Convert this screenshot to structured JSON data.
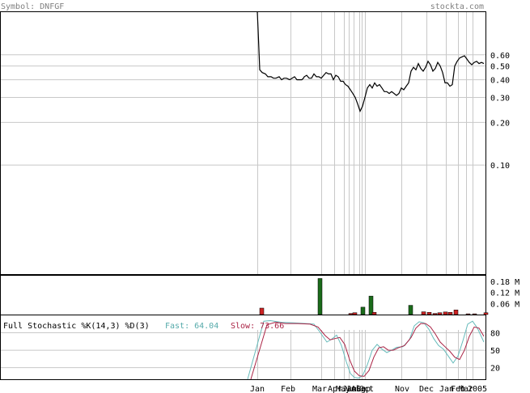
{
  "header": {
    "symbol_label": "Symbol: DNFGF",
    "site": "stockta.com"
  },
  "colors": {
    "header_text": "#808080",
    "grid": "#c8c8c8",
    "price_line": "#000000",
    "vol_up": "#1a6b1a",
    "vol_down": "#cc2222",
    "fast_line": "#66bbbb",
    "slow_line": "#aa2244",
    "stoch_title": "#000000",
    "fast_text": "#55aaaa",
    "slow_text": "#aa2244"
  },
  "chart_data": [
    {
      "type": "line",
      "name": "price",
      "yscale": "log",
      "ylim": [
        0.017,
        1.2
      ],
      "yticks": [
        "0.60",
        "0.50",
        "0.40",
        "0.30",
        "0.20",
        "0.10"
      ],
      "ytick_values": [
        0.6,
        0.5,
        0.4,
        0.3,
        0.2,
        0.1
      ],
      "xticks": [
        "Jan",
        "Feb",
        "Mar",
        "Apr",
        "May",
        "Jun",
        "Jul",
        "Aug",
        "Sep",
        "Oct",
        "Nov",
        "Dec",
        "Jan",
        "Feb",
        "Mar",
        "2005"
      ],
      "x": [
        0,
        1,
        3,
        6,
        10,
        13,
        17,
        20,
        23,
        27,
        30,
        33,
        36,
        40,
        43,
        46,
        49,
        52,
        55,
        57,
        58,
        61,
        64,
        67,
        70,
        73,
        76,
        79,
        82,
        85,
        88,
        91,
        94,
        97,
        100,
        103,
        106,
        109,
        112,
        115,
        118,
        121,
        124,
        127,
        130,
        133,
        136,
        139,
        142,
        145,
        148,
        151,
        154,
        157,
        160,
        163,
        166,
        169,
        172,
        175,
        178,
        181,
        184,
        187,
        190,
        193,
        196,
        199,
        202,
        205,
        208,
        211,
        214,
        217,
        220,
        223,
        226,
        229,
        232,
        235,
        238,
        241,
        244,
        247,
        250,
        253,
        256,
        259,
        262,
        265,
        268,
        271,
        274,
        277,
        280
      ],
      "values": [
        1.2,
        0.9,
        0.47,
        0.45,
        0.44,
        0.42,
        0.42,
        0.41,
        0.41,
        0.42,
        0.4,
        0.41,
        0.41,
        0.4,
        0.41,
        0.42,
        0.4,
        0.4,
        0.4,
        0.41,
        0.42,
        0.43,
        0.41,
        0.41,
        0.44,
        0.42,
        0.42,
        0.41,
        0.43,
        0.45,
        0.44,
        0.44,
        0.4,
        0.43,
        0.42,
        0.39,
        0.39,
        0.37,
        0.36,
        0.34,
        0.32,
        0.3,
        0.27,
        0.24,
        0.26,
        0.3,
        0.35,
        0.37,
        0.35,
        0.38,
        0.36,
        0.37,
        0.35,
        0.33,
        0.33,
        0.32,
        0.33,
        0.32,
        0.31,
        0.32,
        0.35,
        0.34,
        0.36,
        0.38,
        0.46,
        0.49,
        0.47,
        0.52,
        0.48,
        0.46,
        0.49,
        0.54,
        0.51,
        0.46,
        0.48,
        0.53,
        0.5,
        0.45,
        0.38,
        0.38,
        0.36,
        0.37,
        0.5,
        0.54,
        0.57,
        0.58,
        0.59,
        0.56,
        0.53,
        0.51,
        0.53,
        0.54,
        0.52,
        0.53,
        0.52
      ]
    },
    {
      "type": "bar",
      "name": "volume",
      "yticks": [
        "0.18 M",
        "0.12 M",
        "0.06 M"
      ],
      "ytick_values": [
        0.18,
        0.12,
        0.06
      ],
      "ylim": [
        0,
        0.21
      ],
      "bars": [
        {
          "x": 3,
          "v": 0.035,
          "up": false
        },
        {
          "x": 75,
          "v": 0.195,
          "up": true
        },
        {
          "x": 113,
          "v": 0.006,
          "up": false
        },
        {
          "x": 118,
          "v": 0.01,
          "up": false
        },
        {
          "x": 128,
          "v": 0.04,
          "up": true
        },
        {
          "x": 138,
          "v": 0.1,
          "up": true
        },
        {
          "x": 142,
          "v": 0.012,
          "up": false
        },
        {
          "x": 187,
          "v": 0.05,
          "up": true
        },
        {
          "x": 203,
          "v": 0.015,
          "up": false
        },
        {
          "x": 210,
          "v": 0.012,
          "up": false
        },
        {
          "x": 217,
          "v": 0.006,
          "up": false
        },
        {
          "x": 223,
          "v": 0.01,
          "up": false
        },
        {
          "x": 230,
          "v": 0.014,
          "up": false
        },
        {
          "x": 236,
          "v": 0.012,
          "up": false
        },
        {
          "x": 243,
          "v": 0.025,
          "up": false
        },
        {
          "x": 258,
          "v": 0.004,
          "up": false
        },
        {
          "x": 266,
          "v": 0.004,
          "up": false
        },
        {
          "x": 280,
          "v": 0.01,
          "up": false
        }
      ]
    },
    {
      "type": "line",
      "name": "stochastic",
      "title": "Full Stochastic %K(14,3) %D(3)",
      "fast_label": "Fast: 64.04",
      "slow_label": "Slow: 73.66",
      "ylim": [
        0,
        110
      ],
      "yticks": [
        "80",
        "50",
        "20"
      ],
      "ytick_values": [
        80,
        50,
        20
      ],
      "series": [
        {
          "name": "Fast",
          "x": [
            0,
            8,
            16,
            30,
            45,
            60,
            70,
            78,
            86,
            92,
            98,
            104,
            110,
            115,
            120,
            125,
            130,
            136,
            142,
            148,
            154,
            160,
            166,
            172,
            180,
            188,
            194,
            200,
            206,
            212,
            218,
            224,
            230,
            236,
            242,
            248,
            254,
            260,
            266,
            272,
            280
          ],
          "values": [
            0,
            100,
            101,
            98,
            97,
            96,
            95,
            80,
            64,
            69,
            76,
            58,
            30,
            10,
            3,
            2,
            6,
            25,
            50,
            60,
            52,
            46,
            50,
            55,
            56,
            68,
            92,
            99,
            97,
            86,
            70,
            58,
            52,
            40,
            28,
            40,
            66,
            95,
            100,
            88,
            64
          ]
        },
        {
          "name": "Slow",
          "x": [
            0,
            12,
            22,
            35,
            50,
            65,
            75,
            84,
            90,
            96,
            102,
            108,
            114,
            120,
            126,
            132,
            138,
            144,
            150,
            156,
            162,
            168,
            174,
            182,
            190,
            196,
            202,
            208,
            214,
            220,
            226,
            232,
            238,
            244,
            250,
            256,
            262,
            268,
            274,
            280
          ],
          "values": [
            0,
            94,
            98,
            96,
            96,
            95,
            90,
            75,
            68,
            70,
            72,
            60,
            34,
            14,
            6,
            5,
            15,
            38,
            54,
            56,
            50,
            50,
            54,
            58,
            72,
            88,
            96,
            96,
            90,
            78,
            64,
            56,
            48,
            38,
            34,
            50,
            74,
            90,
            88,
            74
          ]
        }
      ]
    }
  ]
}
